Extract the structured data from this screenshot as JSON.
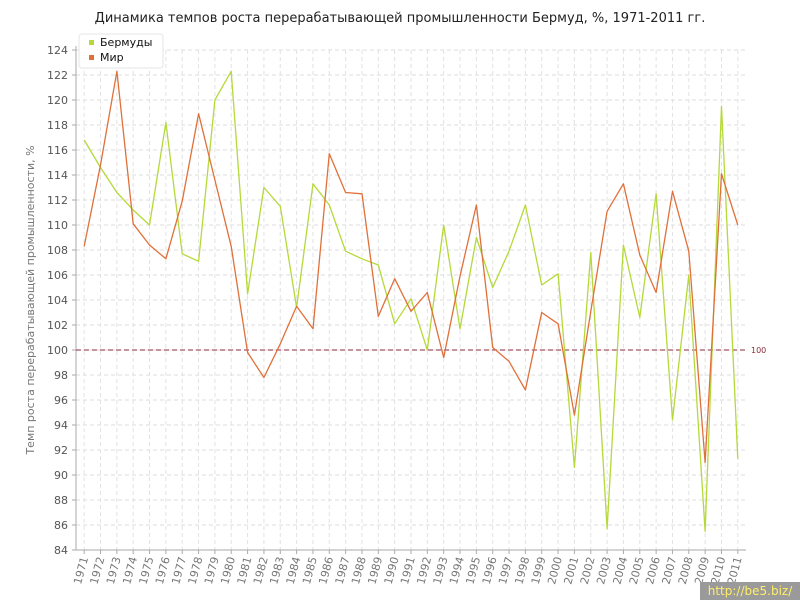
{
  "chart_data": {
    "type": "line",
    "title": "Динамика темпов роста перерабатывающей промышленности Бермуд, %, 1971-2011 гг.",
    "ylabel": "Темп роста перерабатывающей промышленности, %",
    "xlabel": "",
    "ylim": [
      84,
      124
    ],
    "ytick_step": 2,
    "grid": true,
    "legend": "top-left",
    "x": [
      "1971",
      "1972",
      "1973",
      "1974",
      "1975",
      "1976",
      "1977",
      "1978",
      "1979",
      "1980",
      "1981",
      "1982",
      "1983",
      "1984",
      "1985",
      "1986",
      "1987",
      "1988",
      "1989",
      "1990",
      "1991",
      "1992",
      "1993",
      "1994",
      "1995",
      "1996",
      "1997",
      "1998",
      "1999",
      "2000",
      "2001",
      "2002",
      "2003",
      "2004",
      "2005",
      "2006",
      "2007",
      "2008",
      "2009",
      "2010",
      "2011"
    ],
    "reference_line": {
      "value": 100,
      "label": "100",
      "color": "#8b2a3a"
    },
    "series": [
      {
        "name": "Бермуды",
        "color": "#b5d93a",
        "values": [
          116.8,
          114.6,
          112.6,
          111.2,
          110.0,
          118.2,
          107.7,
          107.1,
          120.0,
          122.3,
          104.5,
          113.0,
          111.5,
          103.4,
          113.3,
          111.6,
          107.9,
          107.3,
          106.8,
          102.1,
          104.1,
          100.0,
          110.0,
          101.7,
          109.0,
          105.0,
          107.9,
          111.6,
          105.2,
          106.1,
          90.6,
          107.8,
          85.7,
          108.4,
          102.6,
          112.5,
          94.4,
          106.0,
          85.5,
          119.5,
          91.3
        ]
      },
      {
        "name": "Мир",
        "color": "#e0703a",
        "values": [
          108.3,
          114.8,
          122.3,
          110.1,
          108.4,
          107.3,
          111.9,
          118.9,
          113.6,
          108.3,
          99.8,
          97.8,
          100.5,
          103.5,
          101.7,
          115.7,
          112.6,
          112.5,
          102.7,
          105.7,
          103.1,
          104.6,
          99.4,
          105.9,
          111.6,
          100.2,
          99.1,
          96.8,
          103.0,
          102.1,
          94.8,
          103.1,
          111.1,
          113.3,
          107.6,
          104.6,
          112.7,
          107.9,
          91.0,
          114.1,
          110.0
        ]
      }
    ]
  },
  "watermark": "http://be5.biz/"
}
